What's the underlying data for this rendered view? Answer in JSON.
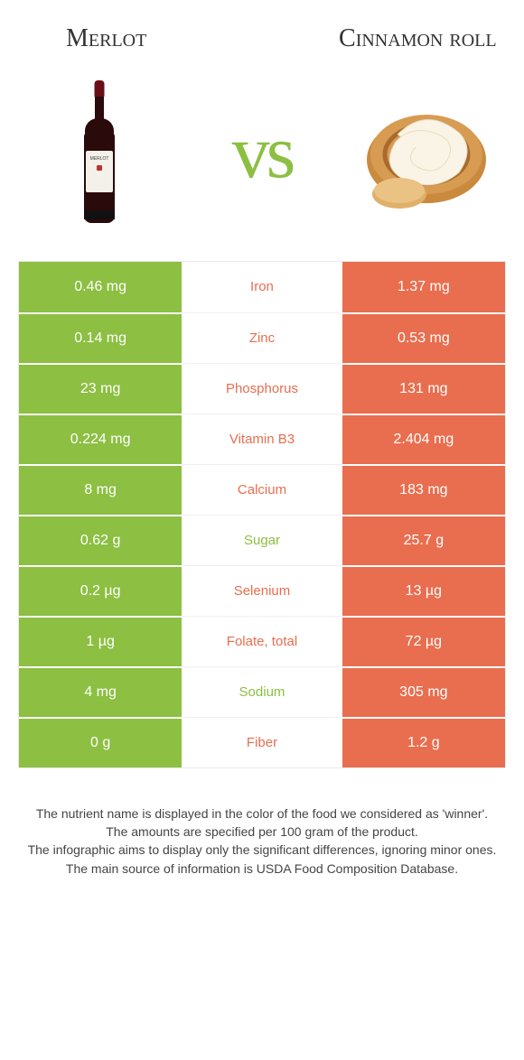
{
  "header": {
    "left_title": "Merlot",
    "right_title": "Cinnamon roll",
    "vs_label": "vs"
  },
  "colors": {
    "left_bg": "#8cbf42",
    "right_bg": "#e86e4f",
    "row_border": "#ffffff",
    "mid_text_right": "#e86e4f",
    "mid_text_left": "#8cbf42"
  },
  "rows": [
    {
      "left": "0.46 mg",
      "label": "Iron",
      "right": "1.37 mg",
      "winner": "right"
    },
    {
      "left": "0.14 mg",
      "label": "Zinc",
      "right": "0.53 mg",
      "winner": "right"
    },
    {
      "left": "23 mg",
      "label": "Phosphorus",
      "right": "131 mg",
      "winner": "right"
    },
    {
      "left": "0.224 mg",
      "label": "Vitamin B3",
      "right": "2.404 mg",
      "winner": "right"
    },
    {
      "left": "8 mg",
      "label": "Calcium",
      "right": "183 mg",
      "winner": "right"
    },
    {
      "left": "0.62 g",
      "label": "Sugar",
      "right": "25.7 g",
      "winner": "left"
    },
    {
      "left": "0.2 µg",
      "label": "Selenium",
      "right": "13 µg",
      "winner": "right"
    },
    {
      "left": "1 µg",
      "label": "Folate, total",
      "right": "72 µg",
      "winner": "right"
    },
    {
      "left": "4 mg",
      "label": "Sodium",
      "right": "305 mg",
      "winner": "left"
    },
    {
      "left": "0 g",
      "label": "Fiber",
      "right": "1.2 g",
      "winner": "right"
    }
  ],
  "footnotes": [
    "The nutrient name is displayed in the color of the food we considered as 'winner'.",
    "The amounts are specified per 100 gram of the product.",
    "The infographic aims to display only the significant differences, ignoring minor ones.",
    "The main source of information is USDA Food Composition Database."
  ]
}
